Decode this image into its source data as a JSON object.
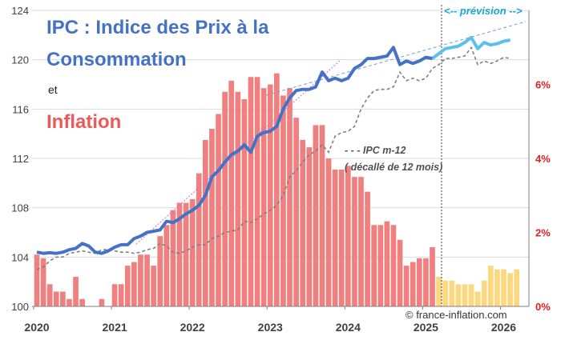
{
  "chart_data": {
    "type": "line",
    "title": {
      "line1": "IPC : Indice des Prix à la",
      "line2": "Consommation",
      "connector": "et",
      "line3": "Inflation"
    },
    "y_left": {
      "ylim": [
        100,
        124
      ],
      "ticks": [
        "100",
        "104",
        "108",
        "112",
        "116",
        "120",
        "124"
      ]
    },
    "y_right": {
      "ylim": [
        0,
        8
      ],
      "ticks": [
        "0%",
        "2%",
        "4%",
        "6%"
      ]
    },
    "x_ticks": [
      "2020",
      "2021",
      "2022",
      "2023",
      "2024",
      "2025",
      "2026"
    ],
    "forecast_label": "<-- prévision -->",
    "annotation_m12": {
      "line1": "- - - IPC m-12",
      "line2": "( décallé  de 12 mois)"
    },
    "credit": "© france-inflation.com",
    "colors": {
      "ipc": "#4472c4",
      "forecast": "#5bc0eb",
      "m12": "#7f7f7f",
      "bars": "#f08080",
      "bars_forecast": "#fbd87f",
      "trend": "#6f9fd8",
      "trend_pink": "#e060e0"
    },
    "ipc": {
      "name": "IPC",
      "values": [
        104.4,
        104.3,
        104.35,
        104.3,
        104.4,
        104.6,
        104.7,
        105.1,
        104.9,
        104.4,
        104.3,
        104.5,
        104.8,
        105.0,
        105.0,
        105.5,
        105.7,
        106.0,
        106.1,
        106.2,
        106.9,
        106.8,
        107.1,
        107.5,
        107.8,
        108.2,
        109.0,
        110.5,
        111.0,
        111.7,
        112.3,
        112.6,
        113.1,
        112.5,
        113.8,
        114.1,
        114.2,
        114.6,
        116.0,
        116.9,
        117.5,
        117.6,
        117.6,
        117.8,
        119.0,
        118.3,
        118.5,
        118.3,
        118.5,
        119.3,
        119.6,
        120.1,
        120.1,
        120.2,
        120.3,
        121.0,
        119.6,
        119.9,
        119.7,
        119.9,
        120.2,
        120.1
      ]
    },
    "forecast": {
      "name": "prévision",
      "values": [
        120.1,
        120.5,
        120.9,
        121.0,
        121.1,
        121.4,
        121.8,
        120.9,
        121.4,
        121.2,
        121.3,
        121.5,
        121.6
      ]
    },
    "ipc_m12": {
      "name": "IPC m-12",
      "values": [
        103.0,
        103.2,
        103.7,
        104.0,
        104.0,
        104.3,
        104.4,
        104.5,
        104.4,
        104.3,
        104.6,
        104.6,
        104.5,
        104.4,
        104.4,
        104.3,
        104.4,
        104.6,
        104.7,
        105.1,
        104.9,
        104.4,
        104.3,
        104.5,
        104.8,
        105.0,
        105.0,
        105.5,
        105.7,
        106.0,
        106.1,
        106.2,
        106.9,
        106.8,
        107.1,
        107.5,
        107.8,
        108.2,
        109.0,
        110.5,
        111.0,
        111.7,
        112.3,
        112.6,
        113.1,
        112.5,
        113.8,
        114.1,
        114.2,
        114.6,
        116.0,
        116.9,
        117.5,
        117.6,
        117.6,
        117.8,
        119.0,
        118.3,
        118.5,
        118.3,
        118.5,
        119.3,
        119.6,
        120.1,
        120.1,
        120.2,
        120.3,
        121.0,
        119.6,
        119.9,
        119.7,
        119.9,
        120.2,
        120.1
      ]
    },
    "inflation": {
      "name": "Inflation",
      "values": [
        1.4,
        1.3,
        0.6,
        0.4,
        0.4,
        0.2,
        0.8,
        0.2,
        0.0,
        0.0,
        0.2,
        0.0,
        0.6,
        0.6,
        1.1,
        1.2,
        1.4,
        1.4,
        1.1,
        1.9,
        2.2,
        2.6,
        2.8,
        2.8,
        2.9,
        3.6,
        4.5,
        4.8,
        5.2,
        5.8,
        6.1,
        5.8,
        5.6,
        6.2,
        6.2,
        5.9,
        6.0,
        6.3,
        5.7,
        5.9,
        5.1,
        4.5,
        4.3,
        4.9,
        4.9,
        4.0,
        3.7,
        3.7,
        3.8,
        3.5,
        3.5,
        3.1,
        2.2,
        2.2,
        2.3,
        2.2,
        1.8,
        1.1,
        1.2,
        1.3,
        1.3,
        1.6
      ]
    },
    "inflation_forecast": {
      "name": "prévision",
      "values": [
        0.8,
        0.7,
        0.7,
        0.6,
        0.6,
        0.6,
        0.4,
        0.7,
        1.1,
        1.0,
        1.0,
        0.9,
        1.0
      ]
    }
  }
}
